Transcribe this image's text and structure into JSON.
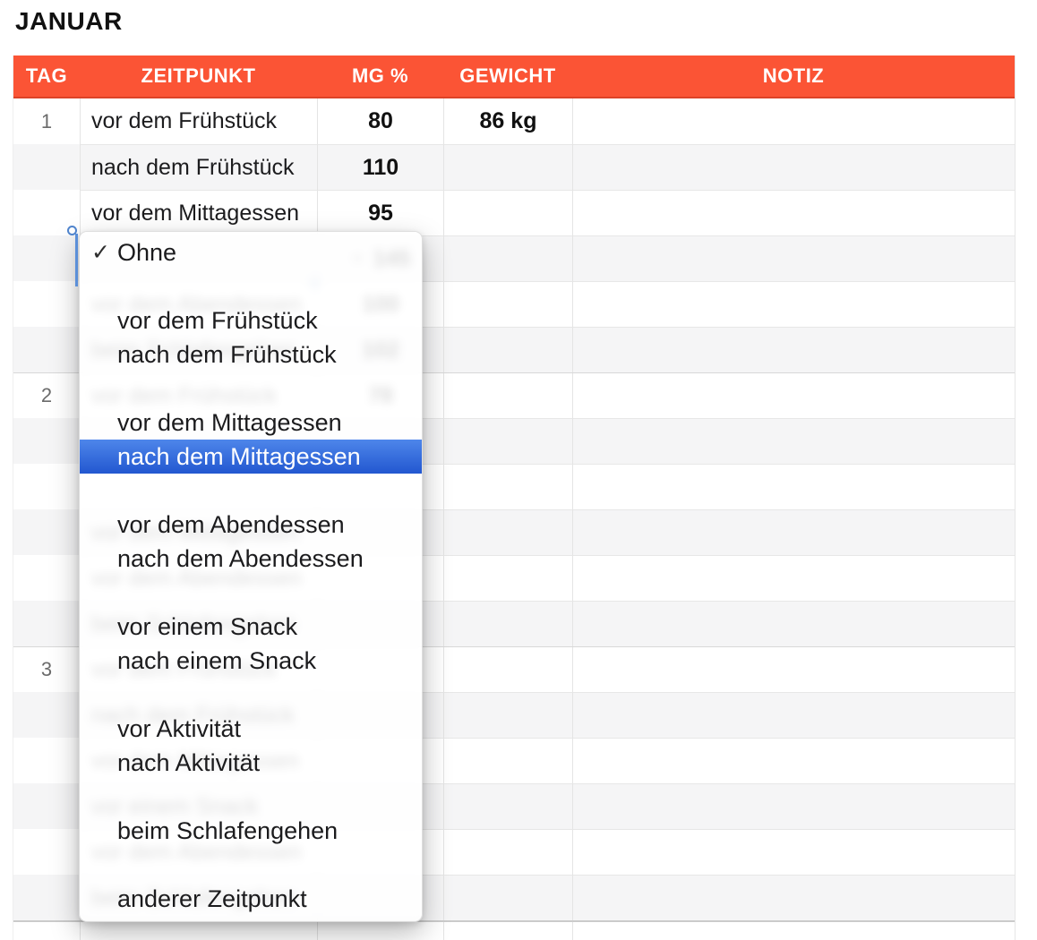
{
  "title": "JANUAR",
  "columns": [
    "TAG",
    "ZEITPUNKT",
    "MG %",
    "GEWICHT",
    "NOTIZ"
  ],
  "days": [
    {
      "tag": "1",
      "rows": [
        {
          "zeitpunkt": "vor dem Frühstück",
          "mg": "80",
          "gewicht": "86 kg"
        },
        {
          "zeitpunkt": "nach dem Frühstück",
          "mg": "110",
          "gewicht": ""
        },
        {
          "zeitpunkt": "vor dem Mittagessen",
          "mg": "95",
          "gewicht": ""
        },
        {
          "zeitpunkt": "",
          "mg": "145",
          "gewicht": ""
        },
        {
          "zeitpunkt": "vor dem Abendessen",
          "mg": "100",
          "gewicht": ""
        },
        {
          "zeitpunkt": "beim Schlafengehen",
          "mg": "102",
          "gewicht": ""
        }
      ]
    },
    {
      "tag": "2",
      "rows": [
        {
          "zeitpunkt": "vor dem Frühstück",
          "mg": "78",
          "gewicht": ""
        },
        {
          "zeitpunkt": "",
          "mg": "",
          "gewicht": ""
        },
        {
          "zeitpunkt": "",
          "mg": "",
          "gewicht": ""
        },
        {
          "zeitpunkt": "vor dem Mittagessen",
          "mg": "",
          "gewicht": ""
        },
        {
          "zeitpunkt": "vor dem Abendessen",
          "mg": "",
          "gewicht": ""
        },
        {
          "zeitpunkt": "beim Schlafengehen",
          "mg": "",
          "gewicht": ""
        }
      ]
    },
    {
      "tag": "3",
      "rows": [
        {
          "zeitpunkt": "vor dem Frühstück",
          "mg": "",
          "gewicht": ""
        },
        {
          "zeitpunkt": "nach dem Frühstück",
          "mg": "",
          "gewicht": ""
        },
        {
          "zeitpunkt": "vor dem Mittagessen",
          "mg": "",
          "gewicht": ""
        },
        {
          "zeitpunkt": "vor einem Snack",
          "mg": "",
          "gewicht": ""
        },
        {
          "zeitpunkt": "vor dem Abendessen",
          "mg": "",
          "gewicht": ""
        },
        {
          "zeitpunkt": "beim Schlafengehen",
          "mg": "",
          "gewicht": ""
        }
      ]
    }
  ],
  "popup_menu": {
    "checked_item": "Ohne",
    "selected_item": "nach dem Mittagessen",
    "groups": [
      [
        "Ohne"
      ],
      [
        "vor dem Frühstück",
        "nach dem Frühstück"
      ],
      [
        "vor dem Mittagessen",
        "nach dem Mittagessen"
      ],
      [
        "vor dem Abendessen",
        "nach dem Abendessen"
      ],
      [
        "vor einem Snack",
        "nach einem Snack"
      ],
      [
        "vor Aktivität",
        "nach Aktivität"
      ],
      [
        "beim Schlafengehen"
      ],
      [
        "anderer Zeitpunkt"
      ]
    ]
  },
  "icons": {
    "checkmark": "✓",
    "popup_arrow": "▼"
  },
  "colors": {
    "header_bg": "#FB5435",
    "header_border": "#DD4327",
    "row_alt": "#F5F5F6",
    "gridline": "#E4E4E4",
    "highlight_top": "#4E86EA",
    "highlight_bottom": "#2257D0",
    "selection_blue": "#5B8FD8",
    "day_number": "#6B6B6B"
  }
}
